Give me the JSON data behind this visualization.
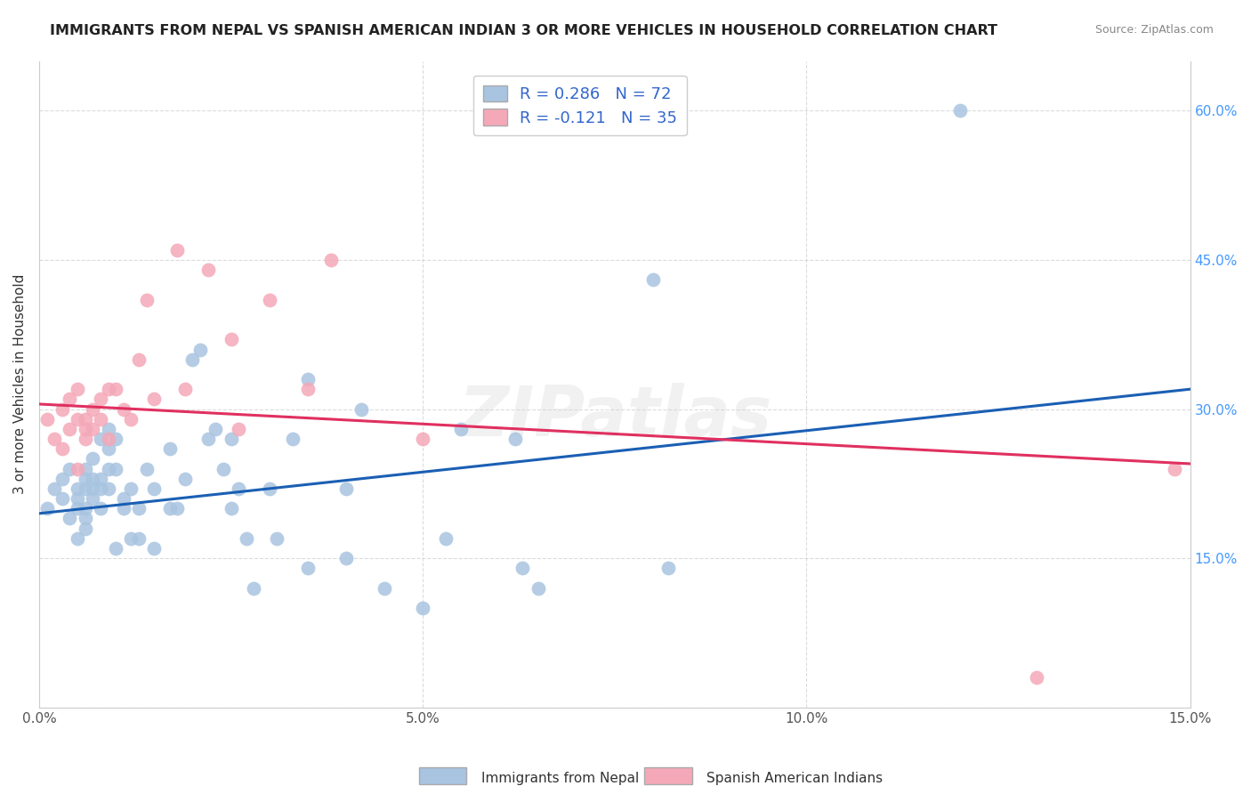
{
  "title": "IMMIGRANTS FROM NEPAL VS SPANISH AMERICAN INDIAN 3 OR MORE VEHICLES IN HOUSEHOLD CORRELATION CHART",
  "source": "Source: ZipAtlas.com",
  "ylabel": "3 or more Vehicles in Household",
  "x_min": 0.0,
  "x_max": 0.15,
  "y_min": 0.0,
  "y_max": 0.65,
  "nepal_r": 0.286,
  "nepal_n": 72,
  "spanish_r": -0.121,
  "spanish_n": 35,
  "nepal_color": "#a8c4e0",
  "spanish_color": "#f4a8b8",
  "nepal_line_color": "#1a5fb4",
  "spanish_line_color": "#e03060",
  "bg_color": "#ffffff",
  "grid_color": "#cccccc",
  "nepal_scatter_x": [
    0.001,
    0.002,
    0.003,
    0.003,
    0.004,
    0.004,
    0.005,
    0.005,
    0.005,
    0.005,
    0.006,
    0.006,
    0.006,
    0.006,
    0.006,
    0.006,
    0.007,
    0.007,
    0.007,
    0.007,
    0.008,
    0.008,
    0.008,
    0.008,
    0.009,
    0.009,
    0.009,
    0.009,
    0.01,
    0.01,
    0.01,
    0.011,
    0.011,
    0.012,
    0.012,
    0.013,
    0.013,
    0.014,
    0.015,
    0.015,
    0.017,
    0.017,
    0.018,
    0.019,
    0.02,
    0.021,
    0.022,
    0.023,
    0.024,
    0.025,
    0.025,
    0.026,
    0.027,
    0.028,
    0.03,
    0.031,
    0.033,
    0.035,
    0.035,
    0.04,
    0.04,
    0.042,
    0.045,
    0.05,
    0.053,
    0.055,
    0.062,
    0.063,
    0.065,
    0.08,
    0.082,
    0.12
  ],
  "nepal_scatter_y": [
    0.2,
    0.22,
    0.21,
    0.23,
    0.19,
    0.24,
    0.2,
    0.22,
    0.21,
    0.17,
    0.19,
    0.23,
    0.24,
    0.22,
    0.2,
    0.18,
    0.22,
    0.21,
    0.25,
    0.23,
    0.23,
    0.27,
    0.22,
    0.2,
    0.26,
    0.22,
    0.24,
    0.28,
    0.27,
    0.24,
    0.16,
    0.21,
    0.2,
    0.22,
    0.17,
    0.17,
    0.2,
    0.24,
    0.22,
    0.16,
    0.2,
    0.26,
    0.2,
    0.23,
    0.35,
    0.36,
    0.27,
    0.28,
    0.24,
    0.27,
    0.2,
    0.22,
    0.17,
    0.12,
    0.22,
    0.17,
    0.27,
    0.33,
    0.14,
    0.15,
    0.22,
    0.3,
    0.12,
    0.1,
    0.17,
    0.28,
    0.27,
    0.14,
    0.12,
    0.43,
    0.14,
    0.6
  ],
  "spanish_scatter_x": [
    0.001,
    0.002,
    0.003,
    0.003,
    0.004,
    0.004,
    0.005,
    0.005,
    0.005,
    0.006,
    0.006,
    0.006,
    0.007,
    0.007,
    0.008,
    0.008,
    0.009,
    0.009,
    0.01,
    0.011,
    0.012,
    0.013,
    0.014,
    0.015,
    0.018,
    0.019,
    0.022,
    0.025,
    0.026,
    0.03,
    0.035,
    0.038,
    0.05,
    0.13,
    0.148
  ],
  "spanish_scatter_y": [
    0.29,
    0.27,
    0.3,
    0.26,
    0.31,
    0.28,
    0.32,
    0.29,
    0.24,
    0.28,
    0.29,
    0.27,
    0.3,
    0.28,
    0.31,
    0.29,
    0.32,
    0.27,
    0.32,
    0.3,
    0.29,
    0.35,
    0.41,
    0.31,
    0.46,
    0.32,
    0.44,
    0.37,
    0.28,
    0.41,
    0.32,
    0.45,
    0.27,
    0.03,
    0.24
  ],
  "nepal_trend_x": [
    0.0,
    0.15
  ],
  "nepal_trend_y": [
    0.195,
    0.32
  ],
  "spanish_trend_x": [
    0.0,
    0.15
  ],
  "spanish_trend_y": [
    0.305,
    0.245
  ],
  "watermark": "ZIPatlas",
  "legend_nepal_label": "Immigrants from Nepal",
  "legend_spanish_label": "Spanish American Indians"
}
